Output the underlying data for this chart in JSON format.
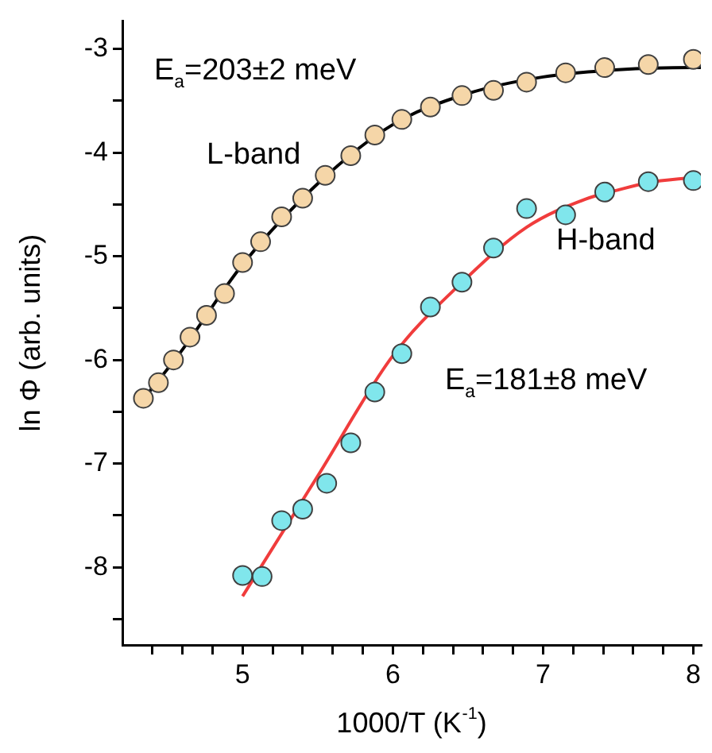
{
  "chart_data": {
    "type": "scatter",
    "xlabel": "1000/T (K$^{-1}$)",
    "ylabel": "ln Φ (arb. units)",
    "xlim": [
      4.2,
      8.05
    ],
    "ylim": [
      -8.75,
      -2.73
    ],
    "xticks": [
      {
        "value": 4.4,
        "label": null
      },
      {
        "value": 4.6,
        "label": null
      },
      {
        "value": 4.8,
        "label": null
      },
      5,
      {
        "value": 5.2,
        "label": null
      },
      {
        "value": 5.4,
        "label": null
      },
      {
        "value": 5.6,
        "label": null
      },
      {
        "value": 5.8,
        "label": null
      },
      6,
      {
        "value": 6.2,
        "label": null
      },
      {
        "value": 6.4,
        "label": null
      },
      {
        "value": 6.6,
        "label": null
      },
      {
        "value": 6.8,
        "label": null
      },
      7,
      {
        "value": 7.2,
        "label": null
      },
      {
        "value": 7.4,
        "label": null
      },
      {
        "value": 7.6,
        "label": null
      },
      {
        "value": 7.8,
        "label": null
      },
      8
    ],
    "yticks": [
      {
        "value": -8.5,
        "label": null
      },
      -8,
      {
        "value": -7.5,
        "label": null
      },
      -7,
      {
        "value": -6.5,
        "label": null
      },
      -6,
      {
        "value": -5.5,
        "label": null
      },
      -5,
      {
        "value": -4.5,
        "label": null
      },
      -4,
      {
        "value": -3.5,
        "label": null
      },
      -3
    ],
    "series": [
      {
        "type": "scatter",
        "marker": "circle",
        "color": "#f5d6a8",
        "x": [
          4.34,
          4.44,
          4.54,
          4.65,
          4.76,
          4.88,
          5.0,
          5.12,
          5.26,
          5.4,
          5.55,
          5.72,
          5.88,
          6.06,
          6.25,
          6.46,
          6.67,
          6.89,
          7.15,
          7.41,
          7.7,
          8.0
        ],
        "values": [
          -6.37,
          -6.22,
          -6.0,
          -5.78,
          -5.57,
          -5.36,
          -5.06,
          -4.86,
          -4.62,
          -4.44,
          -4.22,
          -4.03,
          -3.83,
          -3.68,
          -3.56,
          -3.45,
          -3.4,
          -3.32,
          -3.23,
          -3.18,
          -3.15,
          -3.1
        ]
      },
      {
        "type": "line",
        "marker": "none",
        "color": "#000000",
        "x": [
          4.34,
          4.6,
          5.0,
          5.5,
          6.0,
          6.5,
          7.0,
          7.5,
          8.0,
          8.05
        ],
        "values": [
          -6.38,
          -5.9,
          -5.08,
          -4.3,
          -3.73,
          -3.43,
          -3.27,
          -3.2,
          -3.18,
          -3.18
        ]
      },
      {
        "type": "scatter",
        "marker": "circle",
        "color": "#80e6ec",
        "x": [
          5.0,
          5.13,
          5.26,
          5.4,
          5.56,
          5.72,
          5.88,
          6.06,
          6.25,
          6.46,
          6.67,
          6.89,
          7.15,
          7.41,
          7.7,
          8.0
        ],
        "values": [
          -8.08,
          -8.09,
          -7.55,
          -7.44,
          -7.19,
          -6.8,
          -6.31,
          -5.94,
          -5.49,
          -5.25,
          -4.92,
          -4.54,
          -4.6,
          -4.38,
          -4.28,
          -4.27
        ]
      },
      {
        "type": "line",
        "marker": "none",
        "color": "#f03c3c",
        "x": [
          5.0,
          5.5,
          6.0,
          6.44,
          6.89,
          7.28,
          7.5,
          7.7,
          8.0
        ],
        "values": [
          -8.28,
          -7.12,
          -5.96,
          -5.28,
          -4.72,
          -4.45,
          -4.36,
          -4.29,
          -4.24
        ]
      }
    ],
    "annotations": [
      "E$_{a}$=203±2 meV",
      "L-band",
      "H-band",
      "E$_{a}$=181±8 meV"
    ]
  }
}
